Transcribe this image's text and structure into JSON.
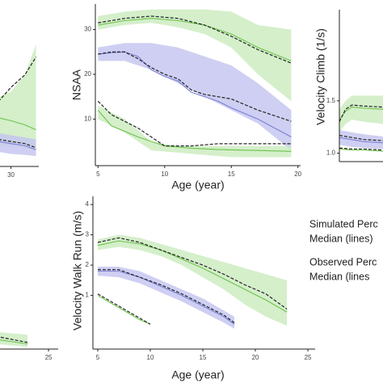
{
  "chart_data": [
    {
      "type": "line",
      "xlim": [
        25.5,
        40
      ],
      "xticks": [
        30
      ],
      "ylim": [
        0,
        40
      ],
      "bands": [
        {
          "color": "#c9ebbd",
          "x": [
            25.5,
            30,
            35,
            39
          ],
          "upper": [
            16.6,
            18,
            22,
            29.3
          ],
          "lower": [
            5,
            5,
            4.5,
            3.9
          ]
        },
        {
          "color": "#c3c3f0",
          "x": [
            25.5,
            30,
            35,
            39
          ],
          "upper": [
            8,
            7.5,
            7,
            6.5
          ],
          "lower": [
            3.5,
            3,
            2.8,
            2.5
          ]
        }
      ],
      "series": [
        {
          "color": "#6cc24a",
          "x": [
            25.5,
            30,
            35,
            39
          ],
          "values": [
            11.7,
            11,
            10,
            8.8
          ]
        },
        {
          "color": "#222222",
          "dash": true,
          "x": [
            25.5,
            30,
            35,
            39
          ],
          "values": [
            15.6,
            19,
            22,
            26.3
          ]
        },
        {
          "color": "#7b7fd4",
          "x": [
            25.5,
            30,
            35,
            39
          ],
          "values": [
            6,
            5.5,
            5,
            4
          ]
        },
        {
          "color": "#222222",
          "dash": true,
          "x": [
            25.5,
            30,
            35,
            39
          ],
          "values": [
            6.5,
            6,
            5.5,
            4.5
          ]
        }
      ]
    },
    {
      "type": "line",
      "xlabel": "Age (year)",
      "ylabel": "NSAA",
      "xlim": [
        4.8,
        20.2
      ],
      "xticks": [
        5,
        10,
        15,
        20
      ],
      "ylim": [
        -0.4,
        35.7
      ],
      "yticks": [
        10,
        20,
        30
      ],
      "bands": [
        {
          "color": "#c9ebbd",
          "x": [
            5,
            7,
            9,
            11,
            13,
            15,
            17,
            19.5
          ],
          "upper": [
            33,
            34,
            34.5,
            34.5,
            34.5,
            34,
            31,
            30
          ],
          "lower": [
            30,
            31,
            31.5,
            30.5,
            29,
            26,
            20,
            14
          ]
        },
        {
          "color": "#c3c3f0",
          "x": [
            5,
            7,
            9,
            11,
            13,
            15,
            17,
            19.5
          ],
          "upper": [
            26,
            27,
            27,
            26,
            24,
            22,
            18,
            12
          ],
          "lower": [
            23,
            23,
            21,
            18,
            15,
            12,
            9,
            3
          ]
        },
        {
          "color": "#c9ebbd",
          "x": [
            5,
            7,
            9,
            11,
            13,
            15,
            19.5
          ],
          "upper": [
            13,
            10,
            5,
            4,
            4,
            4,
            4
          ],
          "lower": [
            10,
            7,
            3,
            2.5,
            2,
            1.5,
            1.5
          ]
        }
      ],
      "series": [
        {
          "color": "#6cc24a",
          "x": [
            5,
            7,
            9,
            11,
            13,
            15,
            17,
            19.5
          ],
          "values": [
            31,
            32,
            32.5,
            32,
            31,
            29,
            26,
            23
          ]
        },
        {
          "color": "#222222",
          "dash": true,
          "x": [
            5,
            7,
            9,
            11,
            13,
            15,
            17,
            19.5
          ],
          "values": [
            31.5,
            32.5,
            33,
            32.5,
            31,
            28.5,
            25.5,
            22.5
          ]
        },
        {
          "color": "#7b7fd4",
          "x": [
            5,
            6,
            7,
            8,
            9,
            10,
            11,
            12,
            13,
            14,
            15,
            17,
            19.5
          ],
          "values": [
            24.5,
            24.8,
            25,
            24,
            21,
            19.5,
            18.5,
            16,
            15,
            14,
            12.5,
            10,
            6
          ]
        },
        {
          "color": "#222222",
          "dash": true,
          "x": [
            5,
            6,
            7,
            8,
            9,
            10,
            11,
            12,
            13,
            14,
            15,
            17,
            19.5
          ],
          "values": [
            24.5,
            25,
            25,
            23.5,
            21.5,
            20,
            19,
            16.5,
            15.5,
            15,
            14.5,
            12,
            9.5
          ]
        },
        {
          "color": "#6cc24a",
          "x": [
            5,
            6,
            8,
            10,
            12,
            14,
            17,
            19.5
          ],
          "values": [
            12,
            8.5,
            6,
            4,
            3.5,
            3.2,
            3,
            2.8
          ]
        },
        {
          "color": "#222222",
          "dash": true,
          "x": [
            5,
            6,
            8,
            10,
            12,
            14,
            17,
            19.5
          ],
          "values": [
            14,
            11,
            8,
            4,
            4,
            4.5,
            4.5,
            4.5
          ]
        }
      ]
    },
    {
      "type": "line",
      "ylabel": "Velocity Climb (1/s)",
      "xlim": [
        5,
        12
      ],
      "ylim": [
        0.92,
        2.37
      ],
      "yticks": [
        {
          "value": 1,
          "label": "1.0"
        },
        1.5
      ],
      "bands": [
        {
          "color": "#c9ebbd",
          "x": [
            5,
            6,
            7,
            9,
            12
          ],
          "upper": [
            1.42,
            1.5,
            1.55,
            1.55,
            1.55
          ],
          "lower": [
            1.2,
            1.28,
            1.32,
            1.3,
            1.28
          ]
        },
        {
          "color": "#c3c3f0",
          "x": [
            5,
            7,
            9,
            12
          ],
          "upper": [
            1.22,
            1.2,
            1.18,
            1.16
          ],
          "lower": [
            1.08,
            1.06,
            1.05,
            1.04
          ]
        }
      ],
      "series": [
        {
          "color": "#6cc24a",
          "x": [
            5,
            6,
            7,
            9,
            12
          ],
          "values": [
            1.32,
            1.4,
            1.44,
            1.43,
            1.42
          ]
        },
        {
          "color": "#222222",
          "dash": true,
          "x": [
            5,
            6,
            7,
            9,
            12
          ],
          "values": [
            1.3,
            1.42,
            1.46,
            1.45,
            1.44
          ]
        },
        {
          "color": "#7b7fd4",
          "x": [
            5,
            7,
            9,
            12
          ],
          "values": [
            1.15,
            1.13,
            1.11,
            1.1
          ]
        },
        {
          "color": "#222222",
          "dash": true,
          "x": [
            5,
            7,
            9,
            12
          ],
          "values": [
            1.17,
            1.15,
            1.13,
            1.12
          ]
        },
        {
          "color": "#6cc24a",
          "x": [
            5,
            7,
            9,
            12
          ],
          "values": [
            1.04,
            1.03,
            1.03,
            1.02
          ]
        },
        {
          "color": "#222222",
          "dash": true,
          "x": [
            5,
            7,
            9,
            12
          ],
          "values": [
            1.05,
            1.04,
            1.04,
            1.03
          ]
        }
      ]
    },
    {
      "type": "line",
      "xlabel": "Age (year)",
      "ylabel": "Velocity Walk Run (m/s)",
      "xlim": [
        4.54,
        25.69
      ],
      "xticks": [
        5,
        10,
        15,
        20,
        25
      ],
      "ylim": [
        -0.77,
        4.27
      ],
      "yticks": [
        1,
        2,
        3,
        4
      ],
      "bands": [
        {
          "color": "#c9ebbd",
          "x": [
            5,
            7,
            9,
            11,
            13,
            15,
            17,
            19,
            21,
            23
          ],
          "upper": [
            2.85,
            3.0,
            2.9,
            2.7,
            2.5,
            2.3,
            2.1,
            1.9,
            1.7,
            1.5
          ],
          "lower": [
            2.5,
            2.6,
            2.5,
            2.3,
            2.0,
            1.6,
            1.2,
            0.7,
            0.3,
            0.0
          ]
        },
        {
          "color": "#c3c3f0",
          "x": [
            5,
            7,
            9,
            11,
            13,
            15,
            17,
            18
          ],
          "upper": [
            1.95,
            1.95,
            1.8,
            1.5,
            1.2,
            0.9,
            0.5,
            0.3
          ],
          "lower": [
            1.65,
            1.6,
            1.4,
            1.1,
            0.8,
            0.45,
            0.1,
            -0.1
          ]
        }
      ],
      "series": [
        {
          "color": "#6cc24a",
          "x": [
            5,
            7,
            9,
            11,
            13,
            15,
            17,
            19,
            21,
            23
          ],
          "values": [
            2.65,
            2.8,
            2.7,
            2.5,
            2.2,
            1.9,
            1.55,
            1.2,
            0.85,
            0.45
          ]
        },
        {
          "color": "#222222",
          "dash": true,
          "x": [
            5,
            7,
            9,
            11,
            13,
            15,
            17,
            19,
            21,
            23
          ],
          "values": [
            2.75,
            2.9,
            2.75,
            2.5,
            2.25,
            2.0,
            1.7,
            1.35,
            1.05,
            0.55
          ]
        },
        {
          "color": "#7b7fd4",
          "x": [
            5,
            7,
            9,
            11,
            13,
            15,
            17,
            18
          ],
          "values": [
            1.8,
            1.8,
            1.6,
            1.3,
            1.0,
            0.65,
            0.3,
            0.05
          ]
        },
        {
          "color": "#222222",
          "dash": true,
          "x": [
            5,
            7,
            9,
            11,
            13,
            15,
            17,
            18
          ],
          "values": [
            1.85,
            1.85,
            1.6,
            1.35,
            1.05,
            0.7,
            0.35,
            0.1
          ]
        },
        {
          "color": "#6cc24a",
          "x": [
            5,
            7,
            9,
            10
          ],
          "values": [
            1.0,
            0.6,
            0.2,
            0.05
          ]
        },
        {
          "color": "#222222",
          "dash": true,
          "x": [
            5,
            7,
            9,
            10
          ],
          "values": [
            1.05,
            0.65,
            0.25,
            0.05
          ]
        }
      ]
    },
    {
      "type": "line",
      "xlim": [
        20,
        25.92
      ],
      "xticks": [
        25
      ],
      "ylim": [
        -0.77,
        4.27
      ],
      "bands": [
        {
          "color": "#c9ebbd",
          "x": [
            20,
            23
          ],
          "upper": [
            -0.2,
            -0.3
          ],
          "lower": [
            -0.6,
            -0.7
          ]
        }
      ],
      "series": [
        {
          "color": "#6cc24a",
          "x": [
            20,
            23
          ],
          "values": [
            -0.45,
            -0.6
          ]
        },
        {
          "color": "#222222",
          "dash": true,
          "x": [
            20,
            23
          ],
          "values": [
            -0.35,
            -0.55
          ]
        }
      ]
    }
  ],
  "legend_text": [
    "Simulated Perc",
    "Median (lines)",
    "Observed Perc",
    "Median (lines"
  ]
}
